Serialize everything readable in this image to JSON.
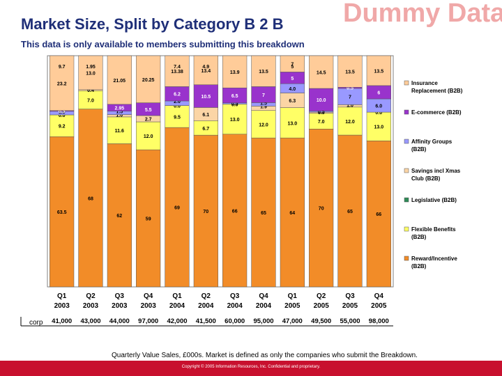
{
  "header": {
    "title": "Market Size, Split by Category B 2 B",
    "watermark": "Dummy Data",
    "subtitle": "This data is only available to members submitting this breakdown"
  },
  "footnote": "Quarterly Value Sales, £000s. Market is defined as only the companies who submit the Breakdown.",
  "copyright": "Copyright © 2005 Information Resources, Inc. Confidential and proprietary.",
  "chart_data": {
    "type": "bar",
    "stacked": true,
    "percent_stacked": true,
    "categories": [
      "Q1 2003",
      "Q2 2003",
      "Q3 2003",
      "Q4 2003",
      "Q1 2004",
      "Q2 2004",
      "Q3 2004",
      "Q4 2004",
      "Q1 2005",
      "Q2 2005",
      "Q3 2005",
      "Q4 2005"
    ],
    "category_lines": [
      [
        "Q1",
        "2003"
      ],
      [
        "Q2",
        "2003"
      ],
      [
        "Q3",
        "2003"
      ],
      [
        "Q4",
        "2003"
      ],
      [
        "Q1",
        "2004"
      ],
      [
        "Q2",
        "2004"
      ],
      [
        "Q3",
        "2004"
      ],
      [
        "Q4",
        "2004"
      ],
      [
        "Q1",
        "2005"
      ],
      [
        "Q2",
        "2005"
      ],
      [
        "Q3",
        "2005"
      ],
      [
        "Q4",
        "2005"
      ]
    ],
    "series": [
      {
        "name": "Reward/Incentive (B2B)",
        "color": "#f28c28",
        "values": [
          63.5,
          68,
          62,
          59,
          69,
          70,
          66,
          65,
          64,
          70,
          65,
          66
        ],
        "labels": [
          "63.5",
          "68",
          "62",
          "59",
          "69",
          "70",
          "66",
          "65",
          "64",
          "70",
          "65",
          "66"
        ]
      },
      {
        "name": "Flexible Benefits (B2B)",
        "color": "#ffff66",
        "values": [
          9.2,
          7.0,
          11.6,
          12.0,
          9.5,
          6.7,
          13.0,
          12.0,
          13.0,
          7.0,
          12.0,
          13.0
        ],
        "labels": [
          "9.2",
          "7.0",
          "11.6",
          "12.0",
          "9.5",
          "6.7",
          "13.0",
          "12.0",
          "13.0",
          "7.0",
          "12.0",
          "13.0"
        ]
      },
      {
        "name": "Legislative (B2B)",
        "color": "#2e8b57",
        "values": [
          0.0,
          0.0,
          0.0,
          0.0,
          0.0,
          0.0,
          0.0,
          0.0,
          0.0,
          0.0,
          0.0,
          0.0
        ],
        "labels": [
          "",
          "",
          "",
          "",
          "",
          "",
          "",
          "",
          "",
          "",
          "",
          ""
        ]
      },
      {
        "name": "Savings incl Xmas Club (B2B)",
        "color": "#fbd5a5",
        "values": [
          0.0,
          0.4,
          1.0,
          2.7,
          0.0,
          6.1,
          0.0,
          1.9,
          6.3,
          0.5,
          1.0,
          0.0
        ],
        "labels": [
          "0.0",
          "0.4",
          "1.0",
          "2.7",
          "0.0",
          "6.1",
          "0.0",
          "1.9",
          "6.3",
          "0.5",
          "1.0",
          "0.0"
        ]
      },
      {
        "name": "Affinity Groups (B2B)",
        "color": "#9999ff",
        "values": [
          1.5,
          0.0,
          1.5,
          0.0,
          2.0,
          0.0,
          0.5,
          1.5,
          4.0,
          0.5,
          7,
          6.0
        ],
        "labels": [
          "1.5",
          "",
          "1.5",
          "",
          "2.0",
          "",
          "0.5",
          "1.5",
          "4.0",
          "0.5",
          "7",
          "6.0"
        ]
      },
      {
        "name": "E-commerce (B2B)",
        "color": "#9933cc",
        "values": [
          0.3,
          0.0,
          2.95,
          5.5,
          6.2,
          10.5,
          6.5,
          7,
          5,
          10.0,
          0.5,
          6
        ],
        "labels": [
          "0.3",
          "",
          "2.95",
          "5.5",
          "6.2",
          "10.5",
          "6.5",
          "7",
          "5",
          "10.0",
          "0.5",
          "6"
        ]
      },
      {
        "name": "Insurance Replacement (B2B)",
        "color": "#ffcc99",
        "values": [
          23.2,
          13.0,
          21.05,
          20.25,
          13.38,
          13.4,
          13.9,
          13.5,
          7.0,
          14.5,
          13.5,
          13.5
        ],
        "labels": [
          "23.2",
          "13.0",
          "21.05",
          "20.25",
          "13.38",
          "13.4",
          "13.9",
          "13.5",
          "7",
          "14.5",
          "13.5",
          "13.5"
        ]
      }
    ],
    "extra_top_labels": [
      "9.7",
      "1.95",
      "",
      "",
      "7.4",
      "4.9",
      "",
      "",
      "5",
      "",
      "",
      ""
    ],
    "legend": [
      "Insurance Replacement (B2B)",
      "E-commerce (B2B)",
      "Affinity Groups (B2B)",
      "Savings incl Xmas Club (B2B)",
      "Legislative (B2B)",
      "Flexible Benefits (B2B)",
      "Reward/Incentive (B2B)"
    ],
    "legend_position": "right",
    "table_row_label": "corp",
    "table_values": [
      "41,000",
      "43,000",
      "44,000",
      "97,000",
      "42,000",
      "41,500",
      "60,000",
      "95,000",
      "47,000",
      "49,500",
      "55,000",
      "98,000"
    ]
  }
}
